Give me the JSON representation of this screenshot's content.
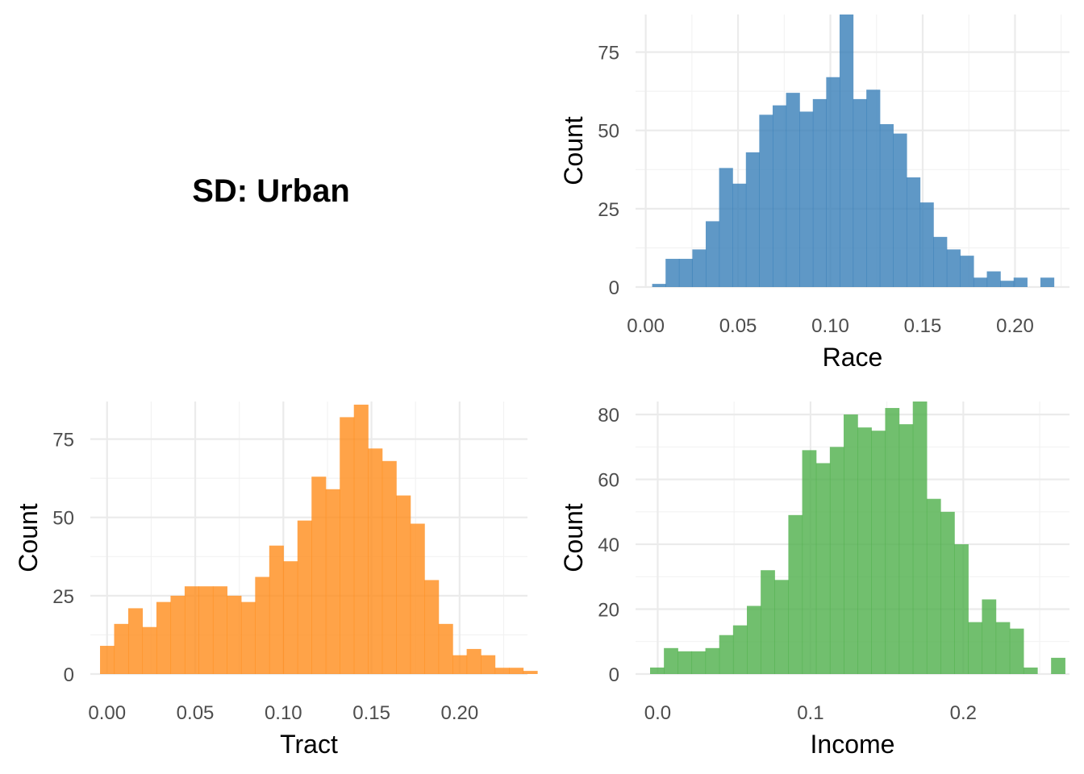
{
  "title": "SD: Urban",
  "chart_data": [
    {
      "type": "bar",
      "xlabel": "Race",
      "ylabel": "Count",
      "color": "#377EB8",
      "xlim": [
        -0.0055,
        0.2295
      ],
      "ylim": [
        0,
        87
      ],
      "x_ticks": [
        "0.00",
        "0.05",
        "0.10",
        "0.15",
        "0.20"
      ],
      "x_tick_values": [
        0,
        0.05,
        0.1,
        0.15,
        0.2
      ],
      "y_ticks": [
        "0",
        "25",
        "50",
        "75"
      ],
      "y_tick_values": [
        0,
        25,
        50,
        75
      ],
      "bin_start": 0.0035,
      "bin_width": 0.00725,
      "values": [
        1,
        9,
        9,
        12,
        21,
        38,
        33,
        43,
        55,
        58,
        62,
        56,
        60,
        67,
        87,
        60,
        63,
        52,
        49,
        35,
        27,
        16,
        12,
        10,
        3,
        5,
        2,
        3,
        0,
        3
      ]
    },
    {
      "type": "bar",
      "xlabel": "Tract",
      "ylabel": "Count",
      "color": "#FF8C1A",
      "xlim": [
        -0.0095,
        0.2385
      ],
      "ylim": [
        0,
        87
      ],
      "x_ticks": [
        "0.00",
        "0.05",
        "0.10",
        "0.15",
        "0.20"
      ],
      "x_tick_values": [
        0,
        0.05,
        0.1,
        0.15,
        0.2
      ],
      "y_ticks": [
        "0",
        "25",
        "50",
        "75"
      ],
      "y_tick_values": [
        0,
        25,
        50,
        75
      ],
      "bin_start": -0.004,
      "bin_width": 0.008,
      "values": [
        9,
        16,
        21,
        15,
        23,
        25,
        28,
        28,
        28,
        25,
        23,
        31,
        41,
        36,
        49,
        63,
        59,
        82,
        86,
        72,
        68,
        57,
        48,
        30,
        16,
        6,
        8,
        6,
        2,
        2,
        1
      ]
    },
    {
      "type": "bar",
      "xlabel": "Income",
      "ylabel": "Count",
      "color": "#4DAF4A",
      "xlim": [
        -0.0145,
        0.2695
      ],
      "ylim": [
        0,
        84
      ],
      "x_ticks": [
        "0.0",
        "0.1",
        "0.2"
      ],
      "x_tick_values": [
        0,
        0.1,
        0.2
      ],
      "y_ticks": [
        "0",
        "20",
        "40",
        "60",
        "80"
      ],
      "y_tick_values": [
        0,
        20,
        40,
        60,
        80
      ],
      "bin_start": -0.005,
      "bin_width": 0.00905,
      "values": [
        2,
        8,
        7,
        7,
        8,
        12,
        15,
        21,
        32,
        29,
        49,
        69,
        65,
        70,
        80,
        76,
        75,
        82,
        77,
        84,
        54,
        50,
        40,
        16,
        23,
        16,
        14,
        2,
        0,
        5
      ]
    }
  ]
}
